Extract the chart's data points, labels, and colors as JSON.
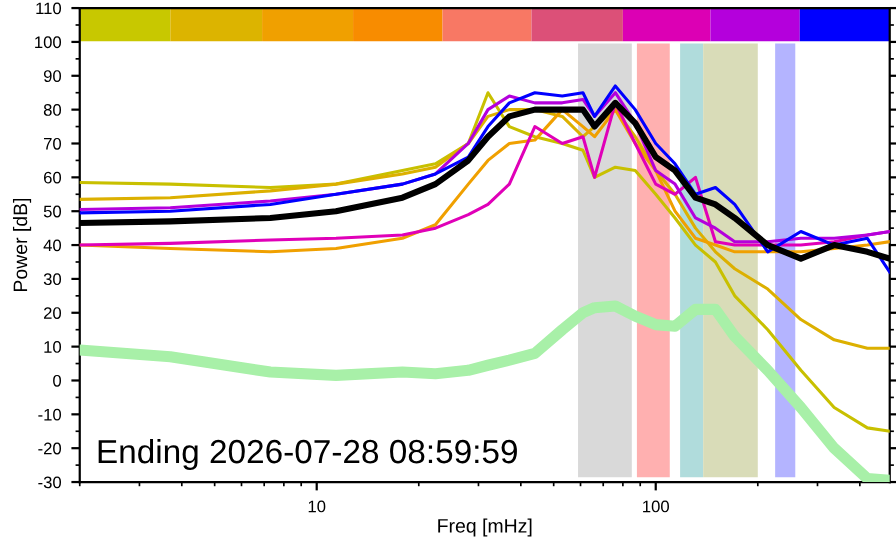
{
  "chart_data": {
    "type": "line",
    "xlabel": "Freq [mHz]",
    "ylabel": "Power [dB]",
    "log": "x",
    "grid": false,
    "legend": false,
    "xlim": [
      2,
      490
    ],
    "xticks": [
      10,
      100
    ],
    "ylim": [
      -30,
      110
    ],
    "yticks": [
      -30,
      -20,
      -10,
      0,
      10,
      20,
      30,
      40,
      50,
      60,
      70,
      80,
      90,
      100,
      110
    ],
    "x": [
      2,
      3.7,
      7.3,
      11.4,
      17.9,
      22.4,
      28,
      32,
      37,
      44,
      53,
      61,
      66,
      76,
      87,
      100,
      114,
      131,
      150,
      171,
      214,
      268,
      336,
      421,
      490
    ],
    "series": [
      {
        "color": "#a8f0a8",
        "values": [
          9,
          7,
          2.5,
          1.5,
          2.5,
          2,
          3,
          4.5,
          6,
          8,
          15,
          20,
          21.5,
          22,
          19,
          16.5,
          16,
          21,
          21,
          13,
          3,
          -8,
          -20,
          -29,
          -29.5
        ]
      },
      {
        "color": "#c8c000",
        "values": [
          58.5,
          58,
          57,
          58,
          62,
          64,
          70,
          85,
          75,
          72,
          70,
          68,
          60,
          63,
          62,
          55,
          48,
          40,
          35,
          25,
          15,
          3,
          -8,
          -14,
          -15
        ]
      },
      {
        "color": "#dcb000",
        "values": [
          53.5,
          54,
          56,
          58,
          61,
          63,
          70,
          78,
          80,
          80,
          78,
          72,
          75,
          80,
          72,
          62,
          55,
          45,
          38,
          33,
          27,
          18,
          12,
          9.5,
          9.5
        ]
      },
      {
        "color": "#f0a000",
        "values": [
          40,
          39,
          38,
          39,
          42,
          46,
          58,
          65,
          70,
          71,
          80,
          75,
          72,
          80,
          70,
          62,
          50,
          42,
          40,
          38,
          38,
          38,
          39,
          40,
          41
        ]
      },
      {
        "color": "#e000b8",
        "values": [
          40,
          40.5,
          41.5,
          42,
          43,
          45,
          49,
          52,
          58,
          75,
          70,
          72,
          60,
          82,
          70,
          58,
          55,
          60,
          41,
          40,
          40,
          40,
          41,
          43,
          44
        ]
      },
      {
        "color": "#b400dc",
        "values": [
          50.5,
          51,
          53,
          55,
          58,
          61,
          70,
          80,
          84,
          82,
          82,
          83,
          78,
          85,
          76,
          62,
          58,
          48,
          45,
          41,
          41,
          42,
          42,
          43,
          44
        ]
      },
      {
        "color": "#0000ff",
        "values": [
          49.5,
          50,
          52,
          55,
          58,
          61,
          66,
          75,
          82,
          85,
          84,
          85,
          78,
          87,
          80,
          70,
          64,
          55,
          57,
          52,
          38,
          44,
          40,
          42,
          32
        ]
      },
      {
        "color": "#000000",
        "values": [
          46.5,
          47,
          48,
          50,
          54,
          58,
          65,
          72,
          78,
          80,
          80,
          80,
          75,
          82,
          76,
          66,
          62,
          54,
          52,
          48,
          40,
          36,
          40,
          38,
          36
        ]
      }
    ],
    "bands": [
      {
        "axis": "x",
        "from": 59,
        "to": 85,
        "color": "#d9d9d9"
      },
      {
        "axis": "x",
        "from": 88,
        "to": 110,
        "color": "#ffb0b0"
      },
      {
        "axis": "x",
        "from": 118,
        "to": 138,
        "color": "#b0dcdc"
      },
      {
        "axis": "x",
        "from": 138,
        "to": 200,
        "color": "#d9dcb8"
      },
      {
        "axis": "x",
        "from": 225,
        "to": 258,
        "color": "#b4b4ff"
      },
      {
        "axis": "x",
        "from": 2,
        "to": 3.7,
        "color": "#c8c800"
      },
      {
        "axis": "x",
        "from": 3.7,
        "to": 6.9,
        "color": "#dcb400"
      },
      {
        "axis": "x",
        "from": 6.9,
        "to": 12.8,
        "color": "#f0a000"
      },
      {
        "axis": "x",
        "from": 12.8,
        "to": 23.5,
        "color": "#f88c00"
      },
      {
        "axis": "x",
        "from": 23.5,
        "to": 43,
        "color": "#f87864"
      },
      {
        "axis": "x",
        "from": 43,
        "to": 80,
        "color": "#dc5078"
      },
      {
        "axis": "x",
        "from": 80,
        "to": 145,
        "color": "#dc00b4"
      },
      {
        "axis": "x",
        "from": 145,
        "to": 266,
        "color": "#b400dc"
      },
      {
        "axis": "x",
        "from": 266,
        "to": 490,
        "color": "#0000ff"
      }
    ],
    "annotations": [
      "Ending 2026-07-28 08:59:59"
    ]
  }
}
